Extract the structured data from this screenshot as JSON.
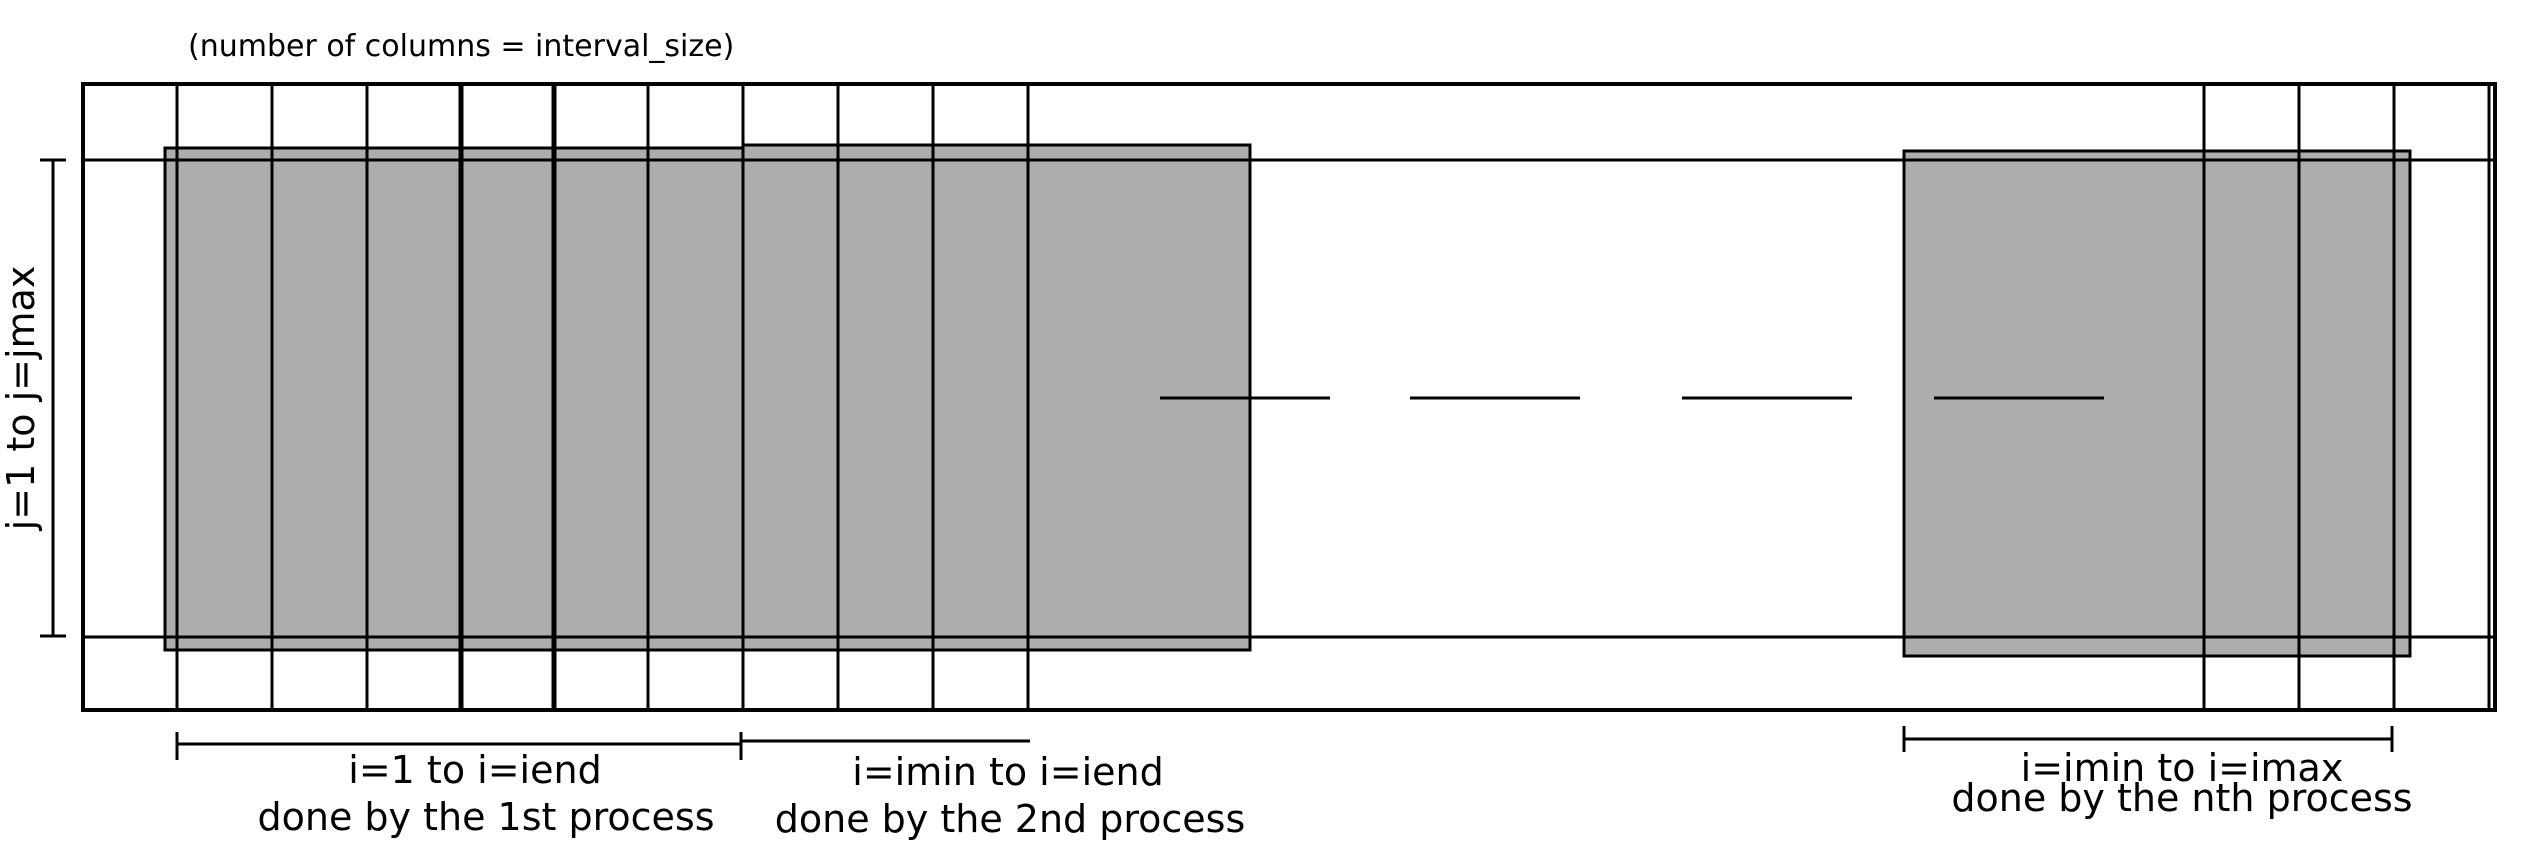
{
  "diagram": {
    "header_note": "(number of columns = interval_size)",
    "vertical_label": "j=1 to j=jmax",
    "process_labels": [
      {
        "range": "i=1 to i=iend",
        "owner": "done by the 1st process"
      },
      {
        "range": "i=imin to i=iend",
        "owner": "done by the 2nd process"
      },
      {
        "range": "i=imin to i=imax",
        "owner": "done by the nth process"
      }
    ],
    "colors": {
      "stroke": "#000000",
      "fill": "#adadad",
      "background": "#ffffff"
    }
  }
}
